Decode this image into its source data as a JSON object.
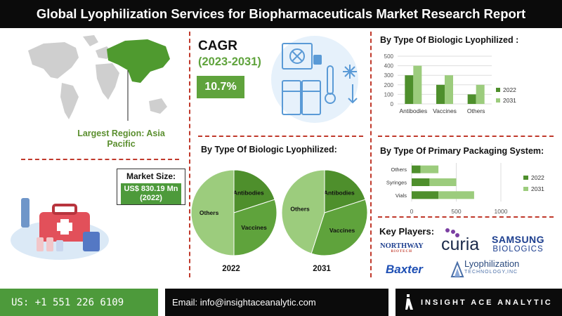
{
  "header": {
    "title": "Global Lyophilization Services for Biopharmaceuticals Market Research Report"
  },
  "region": {
    "label": "Largest Region: Asia Pacific"
  },
  "market_size": {
    "title": "Market Size:",
    "value": "US$ 830.19 Mn (2022)"
  },
  "cagr": {
    "title": "CAGR",
    "years": "(2023-2031)",
    "value": "10.7%"
  },
  "colors": {
    "accent_green": "#5fa33c",
    "dark_green": "#4e8f2c",
    "light_green": "#9ccc7d",
    "divider_red": "#c0392b",
    "black": "#0b0b0b"
  },
  "chart_data": [
    {
      "type": "bar",
      "title": "By Type Of Biologic Lyophilized :",
      "categories": [
        "Antibodies",
        "Vaccines",
        "Others"
      ],
      "series": [
        {
          "name": "2022",
          "values": [
            300,
            200,
            100
          ]
        },
        {
          "name": "2031",
          "values": [
            400,
            300,
            200
          ]
        }
      ],
      "yticks": [
        "0",
        "100",
        "200",
        "300",
        "400",
        "500"
      ],
      "ylim": [
        0,
        500
      ],
      "legend": "right"
    },
    {
      "type": "pie",
      "title": "By Type Of Biologic Lyophilized:",
      "pies": [
        {
          "name": "2022",
          "labels": [
            "Antibodies",
            "Vaccines",
            "Others"
          ],
          "values": [
            20,
            30,
            50
          ]
        },
        {
          "name": "2031",
          "labels": [
            "Antibodies",
            "Vaccines",
            "Others"
          ],
          "values": [
            20,
            35,
            45
          ]
        }
      ]
    },
    {
      "type": "bar",
      "orientation": "horizontal",
      "title": "By Type Of Primary Packaging System:",
      "categories": [
        "Others",
        "Syringes",
        "Vials"
      ],
      "series": [
        {
          "name": "2022",
          "values": [
            100,
            200,
            300
          ]
        },
        {
          "name": "2031",
          "values": [
            200,
            300,
            400
          ]
        }
      ],
      "stacked": true,
      "xticks": [
        "0",
        "500",
        "1000"
      ],
      "xlim": [
        0,
        1000
      ],
      "legend": "right"
    }
  ],
  "key_players": {
    "title": "Key Players:",
    "logos": [
      {
        "name": "NORTHWAY",
        "sub": "BIOTECH"
      },
      {
        "name": "curia"
      },
      {
        "name": "SAMSUNG",
        "sub": "BIOLOGICS"
      },
      {
        "name": "Baxter"
      },
      {
        "name": "Lyophilization",
        "sub": "TECHNOLOGY,INC"
      }
    ]
  },
  "footer": {
    "phone": "US: +1 551 226 6109",
    "email": "Email: info@insightaceanalytic.com",
    "brand": "INSIGHT ACE ANALYTIC"
  }
}
